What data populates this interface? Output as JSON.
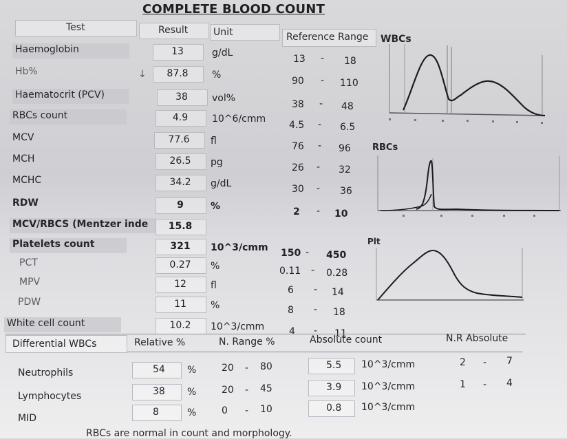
{
  "title": "COMPLETE BLOOD COUNT",
  "headers": {
    "test": "Test",
    "result": "Result",
    "unit": "Unit",
    "range": "Reference Range"
  },
  "rows": [
    {
      "test": "Haemoglobin",
      "flag": "",
      "result": "13",
      "unit": "g/dL",
      "low": "13",
      "high": "18"
    },
    {
      "test": "Hb%",
      "flag": "↓",
      "result": "87.8",
      "unit": "%",
      "low": "90",
      "high": "110"
    },
    {
      "test": "Haematocrit (PCV)",
      "flag": "",
      "result": "38",
      "unit": "vol%",
      "low": "38",
      "high": "48"
    },
    {
      "test": "RBCs count",
      "flag": "",
      "result": "4.9",
      "unit": "10^6/cmm",
      "low": "4.5",
      "high": "6.5"
    },
    {
      "test": "MCV",
      "flag": "",
      "result": "77.6",
      "unit": "fl",
      "low": "76",
      "high": "96"
    },
    {
      "test": "MCH",
      "flag": "",
      "result": "26.5",
      "unit": "pg",
      "low": "26",
      "high": "32"
    },
    {
      "test": "MCHC",
      "flag": "",
      "result": "34.2",
      "unit": "g/dL",
      "low": "30",
      "high": "36"
    },
    {
      "test": "RDW",
      "flag": "",
      "result": "9",
      "unit": "%",
      "low": "2",
      "high": "10"
    },
    {
      "test": "MCV/RBCS (Mentzer inde",
      "flag": "",
      "result": "15.8",
      "unit": "",
      "low": "",
      "high": ""
    },
    {
      "test": "Platelets count",
      "flag": "",
      "result": "321",
      "unit": "10^3/cmm",
      "low": "150",
      "high": "450"
    },
    {
      "test": "PCT",
      "flag": "",
      "result": "0.27",
      "unit": "%",
      "low": "0.11",
      "high": "0.28"
    },
    {
      "test": "MPV",
      "flag": "",
      "result": "12",
      "unit": "fl",
      "low": "6",
      "high": "14"
    },
    {
      "test": "PDW",
      "flag": "",
      "result": "11",
      "unit": "%",
      "low": "8",
      "high": "18"
    },
    {
      "test": "White cell count",
      "flag": "",
      "result": "10.2",
      "unit": "10^3/cmm",
      "low": "4",
      "high": "11"
    }
  ],
  "differential": {
    "headers": {
      "name": "Differential WBCs",
      "relative": "Relative %",
      "nrange": "N. Range %",
      "absolute": "Absolute count",
      "nrabs": "N.R Absolute"
    },
    "rows": [
      {
        "name": "Neutrophils",
        "rel": "54",
        "pct": "%",
        "low": "20",
        "high": "80",
        "abs": "5.5",
        "abs_unit": "10^3/cmm",
        "abs_low": "2",
        "abs_high": "7"
      },
      {
        "name": "Lymphocytes",
        "rel": "38",
        "pct": "%",
        "low": "20",
        "high": "45",
        "abs": "3.9",
        "abs_unit": "10^3/cmm",
        "abs_low": "1",
        "abs_high": "4"
      },
      {
        "name": "MID",
        "rel": "8",
        "pct": "%",
        "low": "0",
        "high": "10",
        "abs": "0.8",
        "abs_unit": "10^3/cmm",
        "abs_low": "",
        "abs_high": ""
      }
    ]
  },
  "histograms": {
    "wbc": "WBCs",
    "rbc": "RBCs",
    "plt": "Plt"
  },
  "footer": "RBCs are normal in count and morphology."
}
